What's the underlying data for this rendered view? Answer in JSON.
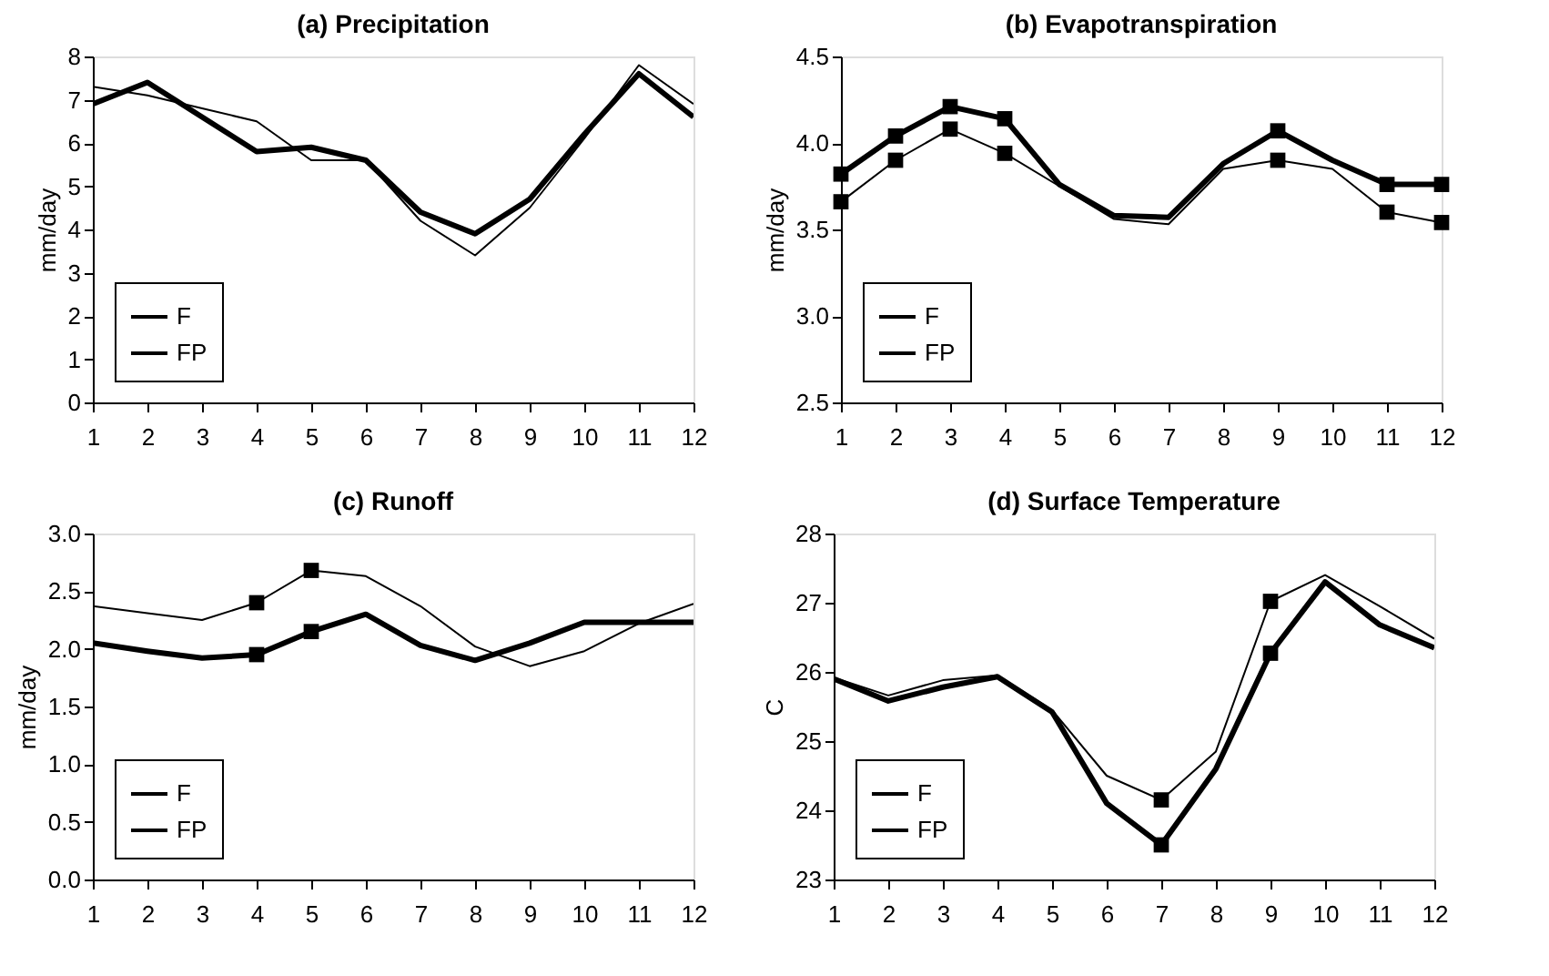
{
  "chart_data": [
    {
      "type": "line",
      "title": "(a) Precipitation",
      "ylabel": "mm/day",
      "x": [
        1,
        2,
        3,
        4,
        5,
        6,
        7,
        8,
        9,
        10,
        11,
        12
      ],
      "xlim": [
        1,
        12
      ],
      "xticks": [
        1,
        2,
        3,
        4,
        5,
        6,
        7,
        8,
        9,
        10,
        11,
        12
      ],
      "ylim": [
        0,
        8
      ],
      "yticks": [
        0,
        1,
        2,
        3,
        4,
        5,
        6,
        7,
        8
      ],
      "grid": false,
      "legend": "bottom left",
      "series": [
        {
          "name": "F",
          "color": "#000000",
          "values": [
            6.9,
            7.4,
            6.6,
            5.8,
            5.9,
            5.6,
            4.4,
            3.9,
            4.7,
            6.2,
            7.6,
            6.6
          ]
        },
        {
          "name": "FP",
          "color": "#000000",
          "values": [
            7.3,
            7.1,
            6.8,
            6.5,
            5.6,
            5.6,
            4.2,
            3.4,
            4.5,
            6.1,
            7.8,
            6.9
          ]
        }
      ]
    },
    {
      "type": "line",
      "title": "(b) Evapotranspiration",
      "ylabel": "mm/day",
      "x": [
        1,
        2,
        3,
        4,
        5,
        6,
        7,
        8,
        9,
        10,
        11,
        12
      ],
      "xlim": [
        1,
        12
      ],
      "xticks": [
        1,
        2,
        3,
        4,
        5,
        6,
        7,
        8,
        9,
        10,
        11,
        12
      ],
      "ylim": [
        2.5,
        4.5
      ],
      "yticks": [
        2.5,
        {
          "value": 3,
          "label": "3.0"
        },
        3.5,
        {
          "value": 4,
          "label": "4.0"
        },
        4.5
      ],
      "grid": false,
      "legend": "bottom left",
      "series": [
        {
          "name": "F",
          "color": "#000000",
          "values": [
            3.82,
            4.04,
            4.21,
            4.14,
            3.76,
            3.58,
            3.57,
            3.88,
            4.07,
            3.9,
            3.76,
            3.76
          ]
        },
        {
          "name": "FP",
          "color": "#000000",
          "values": [
            3.66,
            3.9,
            4.08,
            3.94,
            3.75,
            3.56,
            3.53,
            3.85,
            3.9,
            3.85,
            3.6,
            3.54
          ]
        },
        {
          "type": "scatter",
          "marker": "square",
          "color": "#000000",
          "x": [
            1,
            2,
            3,
            4,
            9,
            11,
            12
          ],
          "values": [
            3.82,
            4.04,
            4.21,
            4.14,
            4.07,
            3.76,
            3.76
          ]
        },
        {
          "type": "scatter",
          "marker": "square",
          "color": "#000000",
          "x": [
            1,
            2,
            3,
            4,
            9,
            11,
            12
          ],
          "values": [
            3.66,
            3.9,
            4.08,
            3.94,
            3.9,
            3.6,
            3.54
          ]
        }
      ]
    },
    {
      "type": "line",
      "title": "(c) Runoff",
      "ylabel": "mm/day",
      "x": [
        1,
        2,
        3,
        4,
        5,
        6,
        7,
        8,
        9,
        10,
        11,
        12
      ],
      "xlim": [
        1,
        12
      ],
      "xticks": [
        1,
        2,
        3,
        4,
        5,
        6,
        7,
        8,
        9,
        10,
        11,
        12
      ],
      "ylim": [
        0,
        3
      ],
      "yticks": [
        {
          "value": 0,
          "label": "0.0"
        },
        0.5,
        {
          "value": 1,
          "label": "1.0"
        },
        1.5,
        {
          "value": 2,
          "label": "2.0"
        },
        2.5,
        {
          "value": 3,
          "label": "3.0"
        }
      ],
      "grid": false,
      "legend": "bottom left",
      "series": [
        {
          "name": "F",
          "color": "#000000",
          "values": [
            2.05,
            1.98,
            1.92,
            1.95,
            2.15,
            2.3,
            2.03,
            1.9,
            2.05,
            2.23,
            2.23,
            2.23
          ]
        },
        {
          "name": "FP",
          "color": "#000000",
          "values": [
            2.37,
            2.31,
            2.25,
            2.4,
            2.68,
            2.63,
            2.37,
            2.02,
            1.85,
            1.98,
            2.22,
            2.39
          ]
        },
        {
          "type": "scatter",
          "marker": "square",
          "color": "#000000",
          "x": [
            4,
            5
          ],
          "values": [
            1.95,
            2.15
          ]
        },
        {
          "type": "scatter",
          "marker": "square",
          "color": "#000000",
          "x": [
            4,
            5
          ],
          "values": [
            2.4,
            2.68
          ]
        }
      ]
    },
    {
      "type": "line",
      "title": "(d) Surface Temperature",
      "ylabel": "C",
      "x": [
        1,
        2,
        3,
        4,
        5,
        6,
        7,
        8,
        9,
        10,
        11,
        12
      ],
      "xlim": [
        1,
        12
      ],
      "xticks": [
        1,
        2,
        3,
        4,
        5,
        6,
        7,
        8,
        9,
        10,
        11,
        12
      ],
      "ylim": [
        23,
        28
      ],
      "yticks": [
        23,
        24,
        25,
        26,
        27,
        28
      ],
      "grid": false,
      "legend": "bottom left",
      "series": [
        {
          "name": "F",
          "color": "#000000",
          "values": [
            25.9,
            25.58,
            25.78,
            25.93,
            25.42,
            24.1,
            23.5,
            24.6,
            26.27,
            27.3,
            26.68,
            26.35
          ]
        },
        {
          "name": "FP",
          "color": "#000000",
          "values": [
            25.92,
            25.66,
            25.88,
            25.95,
            25.45,
            24.5,
            24.15,
            24.85,
            27.02,
            27.4,
            26.95,
            26.48
          ]
        },
        {
          "type": "scatter",
          "marker": "square",
          "color": "#000000",
          "x": [
            7,
            9
          ],
          "values": [
            23.5,
            26.27
          ]
        },
        {
          "type": "scatter",
          "marker": "square",
          "color": "#000000",
          "x": [
            7,
            9
          ],
          "values": [
            24.15,
            27.02
          ]
        }
      ]
    }
  ]
}
